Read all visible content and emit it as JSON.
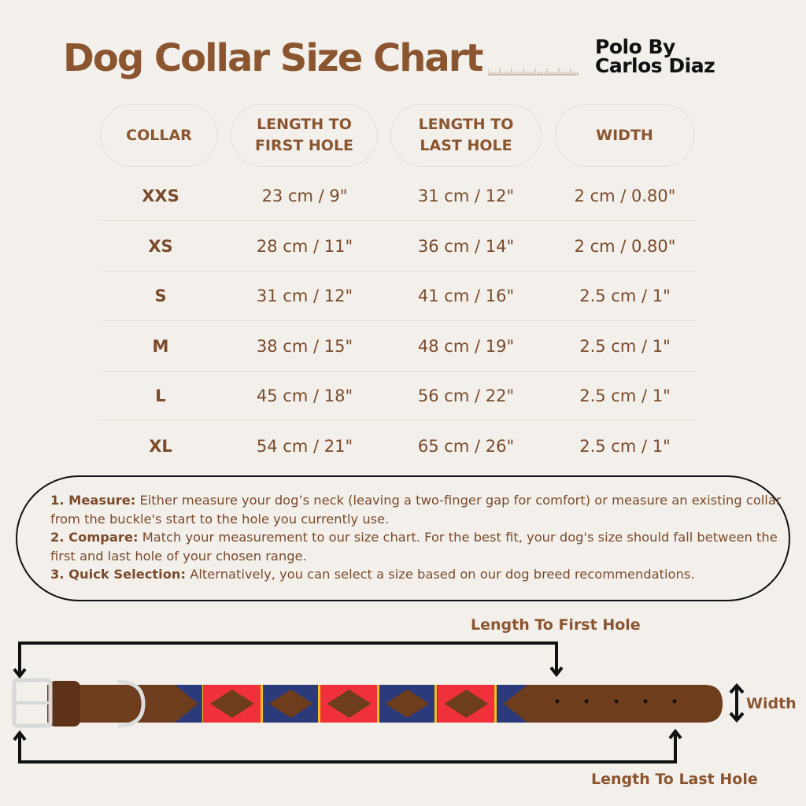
{
  "header": {
    "title": "Dog Collar Size Chart",
    "brand_line1": "Polo By",
    "brand_line2": "Carlos Diaz"
  },
  "table": {
    "columns": [
      [
        "COLLAR"
      ],
      [
        "LENGTH TO",
        "FIRST HOLE"
      ],
      [
        "LENGTH TO",
        "LAST HOLE"
      ],
      [
        "WIDTH"
      ]
    ],
    "rows": [
      [
        "XXS",
        "23 cm / 9\"",
        "31 cm / 12\"",
        "2 cm / 0.80\""
      ],
      [
        "XS",
        "28 cm / 11\"",
        "36 cm / 14\"",
        "2 cm / 0.80\""
      ],
      [
        "S",
        "31 cm / 12\"",
        "41 cm / 16\"",
        "2.5 cm / 1\""
      ],
      [
        "M",
        "38 cm / 15\"",
        "48 cm / 19\"",
        "2.5 cm / 1\""
      ],
      [
        "L",
        "45 cm / 18\"",
        "56 cm / 22\"",
        "2.5 cm / 1\""
      ],
      [
        "XL",
        "54 cm / 21\"",
        "65 cm / 26\"",
        "2.5 cm / 1\""
      ]
    ]
  },
  "instructions": [
    {
      "label": "1. Measure:",
      "text": " Either measure your dog’s neck (leaving a two-finger gap for comfort) or measure an existing collar from the buckle's start to the hole you currently use."
    },
    {
      "label": "2. Compare:",
      "text": " Match your measurement to our size chart. For the best fit, your dog's size should fall between the first and last hole of your chosen range."
    },
    {
      "label": "3. Quick Selection:",
      "text": " Alternatively, you can select a size based on our dog breed recommendations."
    }
  ],
  "diagram": {
    "first_hole_label": "Length To First Hole",
    "last_hole_label": "Length To Last Hole",
    "width_label": "Width"
  },
  "colors": {
    "brown_text": "#8b5530",
    "leather": "#6b3a1c",
    "navy": "#2b3a7a",
    "red": "#f0303a",
    "gold": "#f0c020",
    "background": "#f3f0eb"
  }
}
